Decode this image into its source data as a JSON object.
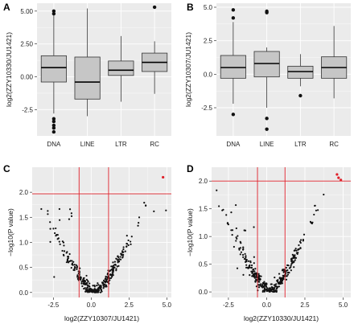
{
  "chart_data": [
    {
      "panel": "A",
      "type": "box",
      "ylabel": "log2(ZZY10330/JU1421)",
      "categories": [
        "DNA",
        "LINE",
        "LTR",
        "RC"
      ],
      "y_ticks": [
        "-2.5",
        "0.00",
        "2.50",
        "5.00"
      ],
      "y_tick_values": [
        -2.5,
        0,
        2.5,
        5
      ],
      "ylim": [
        -4.5,
        5.6
      ],
      "boxes": [
        {
          "min": -2.8,
          "q1": -0.4,
          "median": 0.7,
          "q3": 1.6,
          "max": 4.7,
          "outliers": [
            5.0,
            4.8,
            -3.2,
            -3.4,
            -3.7,
            -3.9,
            -4.2
          ]
        },
        {
          "min": -3.0,
          "q1": -1.7,
          "median": -0.4,
          "q3": 1.5,
          "max": 5.2,
          "outliers": []
        },
        {
          "min": -1.9,
          "q1": 0.1,
          "median": 0.5,
          "q3": 1.2,
          "max": 3.1,
          "outliers": []
        },
        {
          "min": -1.3,
          "q1": 0.4,
          "median": 1.1,
          "q3": 1.8,
          "max": 2.7,
          "outliers": [
            5.3
          ]
        }
      ]
    },
    {
      "panel": "B",
      "type": "box",
      "ylabel": "log2(ZZY10307/JU1421)",
      "categories": [
        "DNA",
        "LINE",
        "LTR",
        "RC"
      ],
      "y_ticks": [
        "-2.5",
        "0.0",
        "2.5",
        "5.0"
      ],
      "y_tick_values": [
        -2.5,
        0,
        2.5,
        5
      ],
      "ylim": [
        -4.6,
        5.3
      ],
      "boxes": [
        {
          "min": -2.2,
          "q1": -0.3,
          "median": 0.5,
          "q3": 1.4,
          "max": 3.9,
          "outliers": [
            4.8,
            4.2,
            -3.0
          ]
        },
        {
          "min": -2.5,
          "q1": -0.2,
          "median": 0.8,
          "q3": 1.7,
          "max": 2.0,
          "outliers": [
            4.7,
            4.6,
            -3.3,
            -4.1
          ]
        },
        {
          "min": -0.9,
          "q1": -0.3,
          "median": 0.2,
          "q3": 0.6,
          "max": 1.5,
          "outliers": [
            -1.6
          ]
        },
        {
          "min": -1.8,
          "q1": -0.3,
          "median": 0.5,
          "q3": 1.3,
          "max": 3.6,
          "outliers": []
        }
      ]
    },
    {
      "panel": "C",
      "type": "scatter",
      "xlabel": "log2(ZZY10307/JU1421)",
      "ylabel": "−log10(P value)",
      "x_ticks": [
        "-2.5",
        "0.0",
        "2.5",
        "5.0"
      ],
      "x_tick_values": [
        -2.5,
        0,
        2.5,
        5
      ],
      "y_ticks": [
        "0.0",
        "0.5",
        "1.0",
        "1.5",
        "2.0"
      ],
      "y_tick_values": [
        0,
        0.5,
        1,
        1.5,
        2
      ],
      "xlim": [
        -3.9,
        5.3
      ],
      "ylim": [
        -0.1,
        2.5
      ],
      "hline": 1.97,
      "vlines": [
        -0.8,
        1.15
      ],
      "significant_points": [
        [
          4.75,
          2.3
        ]
      ],
      "seed": 7
    },
    {
      "panel": "D",
      "type": "scatter",
      "xlabel": "log2(ZZY10330/JU1421)",
      "ylabel": "−log10(P value)",
      "x_ticks": [
        "-2.5",
        "0.0",
        "2.5",
        "5.0"
      ],
      "x_tick_values": [
        -2.5,
        0,
        2.5,
        5
      ],
      "y_ticks": [
        "0.0",
        "0.5",
        "1.0",
        "1.5",
        "2.0"
      ],
      "y_tick_values": [
        0,
        0.5,
        1,
        1.5,
        2
      ],
      "xlim": [
        -3.6,
        5.5
      ],
      "ylim": [
        -0.1,
        2.25
      ],
      "hline": 2.0,
      "vlines": [
        -0.6,
        1.2
      ],
      "significant_points": [
        [
          4.6,
          2.12
        ],
        [
          4.7,
          2.06
        ],
        [
          4.85,
          2.02
        ]
      ],
      "seed": 11
    }
  ],
  "colors": {
    "panel_bg": "#ebebeb",
    "grid": "#ffffff",
    "box_fill": "#c6c6c6",
    "box_stroke": "#333333",
    "point": "#111111",
    "threshold": "#e0202a",
    "significant": "#e0202a"
  }
}
